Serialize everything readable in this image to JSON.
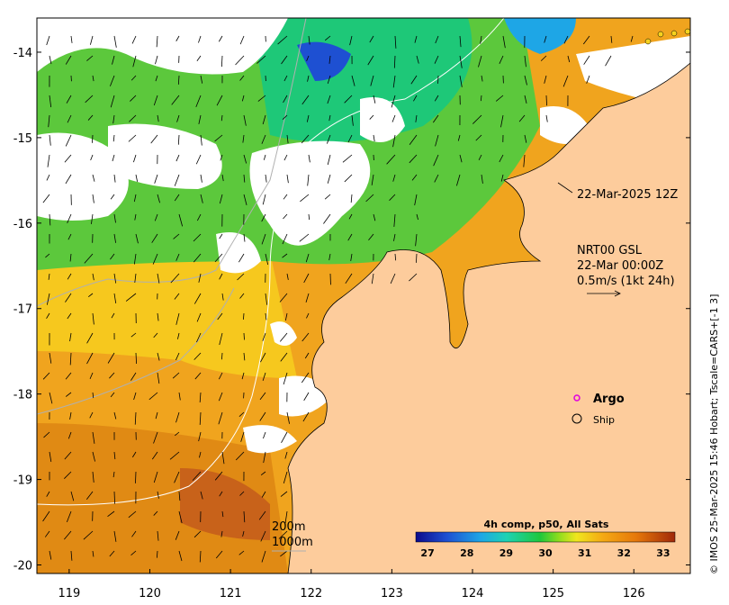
{
  "map": {
    "lon_ticks": [
      "119",
      "120",
      "121",
      "122",
      "123",
      "124",
      "125",
      "126"
    ],
    "lat_ticks": [
      "-14",
      "-15",
      "-16",
      "-17",
      "-18",
      "-19",
      "-20"
    ],
    "lon_range": [
      118.6,
      126.7
    ],
    "lat_range": [
      -20.1,
      -13.6
    ],
    "colors": {
      "land": "#fdcc9c",
      "cloud": "#ffffff"
    }
  },
  "annotations": {
    "timestamp": "22-Mar-2025 12Z",
    "legend_title": "NRT00 GSL",
    "legend_date": "22-Mar 00:00Z",
    "legend_vector": "0.5m/s (1kt 24h)",
    "argo_label": "Argo",
    "ship_label": "Ship",
    "contour_200": "200m",
    "contour_1000": "1000m",
    "side_credit": "© IMOS 25-Mar-2025 15:46 Hobart; Tscale=CARS+[-1 3]"
  },
  "colorbar": {
    "title": "4h comp, p50, All Sats",
    "ticks": [
      "27",
      "28",
      "29",
      "30",
      "31",
      "32",
      "33"
    ],
    "range": [
      26.7,
      33.3
    ]
  }
}
